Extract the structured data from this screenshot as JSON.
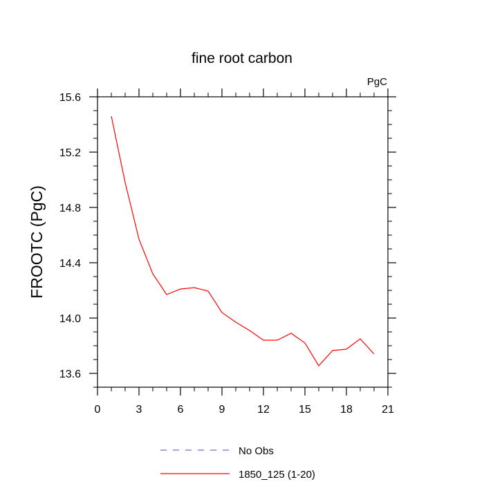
{
  "chart_data": {
    "type": "line",
    "title": "fine root carbon",
    "units_label": "PgC",
    "xlabel": "",
    "ylabel": "FROOTC  (PgC)",
    "xlim": [
      0,
      21
    ],
    "ylim": [
      13.5,
      15.6
    ],
    "x_ticks": [
      0,
      3,
      6,
      9,
      12,
      15,
      18,
      21
    ],
    "y_ticks": [
      13.6,
      14.0,
      14.4,
      14.8,
      15.2,
      15.6
    ],
    "y_tick_labels": [
      "13.6",
      "14.0",
      "14.4",
      "14.8",
      "15.2",
      "15.6"
    ],
    "grid": false,
    "legend_position": "bottom-center",
    "series": [
      {
        "name": "1850_125 (1-20)",
        "color": "#ff0000",
        "style": "solid",
        "x": [
          1,
          2,
          3,
          4,
          5,
          6,
          7,
          8,
          9,
          10,
          11,
          12,
          13,
          14,
          15,
          16,
          17,
          18,
          19,
          20
        ],
        "y": [
          15.46,
          14.98,
          14.57,
          14.32,
          14.17,
          14.21,
          14.22,
          14.195,
          14.04,
          13.97,
          13.91,
          13.84,
          13.84,
          13.89,
          13.82,
          13.655,
          13.765,
          13.775,
          13.85,
          13.74
        ]
      }
    ],
    "legend": [
      {
        "label": "No Obs",
        "color": "#6b6bd6",
        "style": "dashed"
      },
      {
        "label": "1850_125 (1-20)",
        "color": "#ff0000",
        "style": "solid"
      }
    ]
  }
}
